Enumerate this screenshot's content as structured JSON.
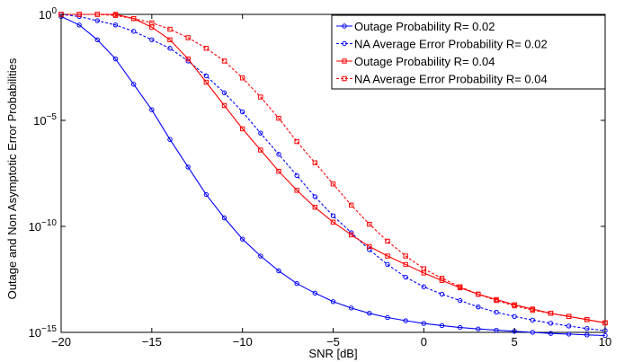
{
  "chart_data": {
    "type": "line",
    "xlabel": "SNR [dB]",
    "ylabel": "Outage and Non Asymptotic Error Probabilities",
    "xlim": [
      -20,
      10
    ],
    "ylim": [
      1e-15,
      1
    ],
    "yscale": "log",
    "grid": false,
    "legend_position": "top-right",
    "x_ticks": [
      -20,
      -15,
      -10,
      -5,
      0,
      5,
      10
    ],
    "x_tick_labels": [
      "−20",
      "−15",
      "−10",
      "−5",
      "0",
      "5",
      "10"
    ],
    "y_ticks": [
      1e-15,
      1e-10,
      1e-05,
      1
    ],
    "y_tick_labels": [
      {
        "base": "10",
        "exp": "−15"
      },
      {
        "base": "10",
        "exp": "−10"
      },
      {
        "base": "10",
        "exp": "−5"
      },
      {
        "base": "10",
        "exp": "0"
      }
    ],
    "x": [
      -20,
      -19,
      -18,
      -17,
      -16,
      -15,
      -14,
      -13,
      -12,
      -11,
      -10,
      -9,
      -8,
      -7,
      -6,
      -5,
      -4,
      -3,
      -2,
      -1,
      0,
      1,
      2,
      3,
      4,
      5,
      6,
      7,
      8,
      9,
      10
    ],
    "series": [
      {
        "name": "Outage Probability R= 0.02",
        "color": "#0000ff",
        "dashed": false,
        "marker": "circle",
        "log10_values": [
          -0.1,
          -0.5,
          -1.2,
          -2.1,
          -3.3,
          -4.5,
          -5.9,
          -7.2,
          -8.5,
          -9.6,
          -10.6,
          -11.4,
          -12.1,
          -12.7,
          -13.15,
          -13.55,
          -13.85,
          -14.1,
          -14.3,
          -14.45,
          -14.58,
          -14.68,
          -14.77,
          -14.84,
          -14.9,
          -14.95,
          -15.0,
          -15.05,
          -15.08,
          -15.12,
          -15.15
        ]
      },
      {
        "name": "NA Average Error Probability R= 0.02",
        "color": "#0000ff",
        "dashed": true,
        "marker": "circle",
        "log10_values": [
          0,
          -0.1,
          -0.3,
          -0.5,
          -0.8,
          -1.2,
          -1.6,
          -2.2,
          -2.9,
          -3.7,
          -4.6,
          -5.6,
          -6.6,
          -7.6,
          -8.6,
          -9.5,
          -10.3,
          -11.1,
          -11.8,
          -12.4,
          -12.85,
          -13.2,
          -13.5,
          -13.8,
          -14.05,
          -14.25,
          -14.42,
          -14.57,
          -14.7,
          -14.82,
          -14.92
        ]
      },
      {
        "name": "Outage Probability R= 0.04",
        "color": "#ff0000",
        "dashed": false,
        "marker": "square",
        "log10_values": [
          0,
          0,
          0,
          0,
          -0.2,
          -0.6,
          -1.2,
          -2.1,
          -3.2,
          -4.3,
          -5.4,
          -6.4,
          -7.4,
          -8.3,
          -9.1,
          -9.8,
          -10.4,
          -10.95,
          -11.4,
          -11.8,
          -12.2,
          -12.55,
          -12.9,
          -13.2,
          -13.45,
          -13.7,
          -13.9,
          -14.1,
          -14.25,
          -14.4,
          -14.55
        ]
      },
      {
        "name": "NA Average Error Probability R= 0.04",
        "color": "#ff0000",
        "dashed": true,
        "marker": "square",
        "log10_values": [
          0,
          0,
          0,
          -0.05,
          -0.2,
          -0.4,
          -0.7,
          -1.1,
          -1.6,
          -2.2,
          -3.0,
          -3.9,
          -4.9,
          -6.0,
          -7.0,
          -8.0,
          -9.0,
          -9.9,
          -10.7,
          -11.4,
          -12.0,
          -12.45,
          -12.85,
          -13.2,
          -13.5,
          -13.75,
          -13.95,
          -14.1,
          -14.25,
          -14.4,
          -14.55
        ]
      }
    ]
  }
}
